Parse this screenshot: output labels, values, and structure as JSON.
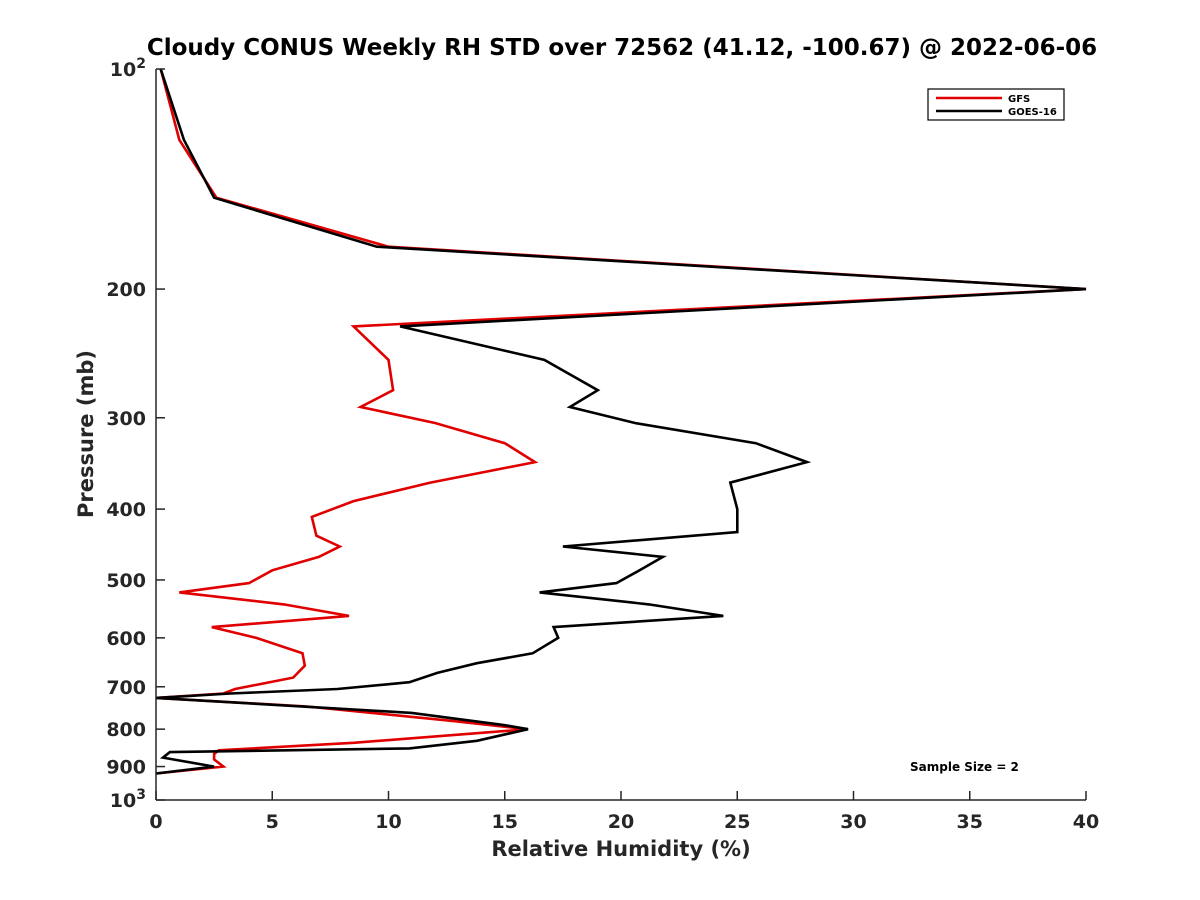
{
  "chart_data": {
    "type": "line",
    "title": "Cloudy CONUS Weekly RH STD over 72562 (41.12, -100.67) @ 2022-06-06",
    "xlabel": "Relative Humidity (%)",
    "ylabel": "Pressure (mb)",
    "xlim": [
      0,
      40
    ],
    "ylim": [
      100,
      1000
    ],
    "yscale": "log",
    "y_reversed": true,
    "grid": false,
    "legend_position": "top-right",
    "x_ticks": [
      "0",
      "5",
      "10",
      "15",
      "20",
      "25",
      "30",
      "35",
      "40"
    ],
    "y_ticks": [
      {
        "value": 100,
        "base": "10",
        "exp": "2"
      },
      {
        "value": 200,
        "label": "200"
      },
      {
        "value": 300,
        "label": "300"
      },
      {
        "value": 400,
        "label": "400"
      },
      {
        "value": 500,
        "label": "500"
      },
      {
        "value": 600,
        "label": "600"
      },
      {
        "value": 700,
        "label": "700"
      },
      {
        "value": 800,
        "label": "800"
      },
      {
        "value": 900,
        "label": "900"
      },
      {
        "value": 1000,
        "base": "10",
        "exp": "3"
      }
    ],
    "annotation": "Sample Size = 2",
    "series": [
      {
        "name": "GFS",
        "color": "#e00000",
        "points": [
          [
            0.2,
            100
          ],
          [
            1.0,
            125
          ],
          [
            2.6,
            150
          ],
          [
            10.0,
            175
          ],
          [
            40.0,
            200
          ],
          [
            8.5,
            225
          ],
          [
            10.0,
            250
          ],
          [
            10.2,
            275
          ],
          [
            8.8,
            290
          ],
          [
            12.0,
            305
          ],
          [
            15.0,
            325
          ],
          [
            16.3,
            345
          ],
          [
            11.8,
            368
          ],
          [
            8.5,
            390
          ],
          [
            6.7,
            410
          ],
          [
            6.9,
            435
          ],
          [
            7.9,
            450
          ],
          [
            7.0,
            465
          ],
          [
            5.0,
            485
          ],
          [
            4.0,
            505
          ],
          [
            1.0,
            520
          ],
          [
            5.5,
            540
          ],
          [
            8.3,
            560
          ],
          [
            2.4,
            580
          ],
          [
            4.3,
            600
          ],
          [
            6.3,
            630
          ],
          [
            6.4,
            655
          ],
          [
            5.9,
            680
          ],
          [
            3.4,
            705
          ],
          [
            2.9,
            715
          ],
          [
            0.0,
            725
          ],
          [
            6.5,
            745
          ],
          [
            12.8,
            780
          ],
          [
            16.0,
            800
          ],
          [
            8.5,
            835
          ],
          [
            2.7,
            855
          ],
          [
            2.5,
            865
          ],
          [
            2.5,
            880
          ],
          [
            2.9,
            900
          ],
          [
            0.0,
            920
          ]
        ]
      },
      {
        "name": "GOES-16",
        "color": "#000000",
        "points": [
          [
            0.2,
            100
          ],
          [
            1.2,
            125
          ],
          [
            2.5,
            150
          ],
          [
            9.5,
            175
          ],
          [
            40.0,
            200
          ],
          [
            10.5,
            225
          ],
          [
            16.7,
            250
          ],
          [
            19.0,
            275
          ],
          [
            17.8,
            290
          ],
          [
            20.6,
            305
          ],
          [
            25.8,
            325
          ],
          [
            28.0,
            345
          ],
          [
            24.7,
            368
          ],
          [
            25.0,
            400
          ],
          [
            25.0,
            430
          ],
          [
            17.5,
            450
          ],
          [
            21.8,
            465
          ],
          [
            20.8,
            485
          ],
          [
            19.8,
            505
          ],
          [
            16.5,
            520
          ],
          [
            21.2,
            540
          ],
          [
            24.4,
            560
          ],
          [
            17.1,
            580
          ],
          [
            17.3,
            600
          ],
          [
            16.2,
            630
          ],
          [
            13.8,
            650
          ],
          [
            12.1,
            670
          ],
          [
            10.9,
            690
          ],
          [
            7.8,
            705
          ],
          [
            3.2,
            715
          ],
          [
            0.0,
            725
          ],
          [
            11.0,
            760
          ],
          [
            15.0,
            790
          ],
          [
            16.0,
            800
          ],
          [
            13.8,
            830
          ],
          [
            10.9,
            850
          ],
          [
            0.6,
            860
          ],
          [
            0.3,
            875
          ],
          [
            2.5,
            900
          ],
          [
            0.0,
            920
          ]
        ]
      }
    ]
  }
}
